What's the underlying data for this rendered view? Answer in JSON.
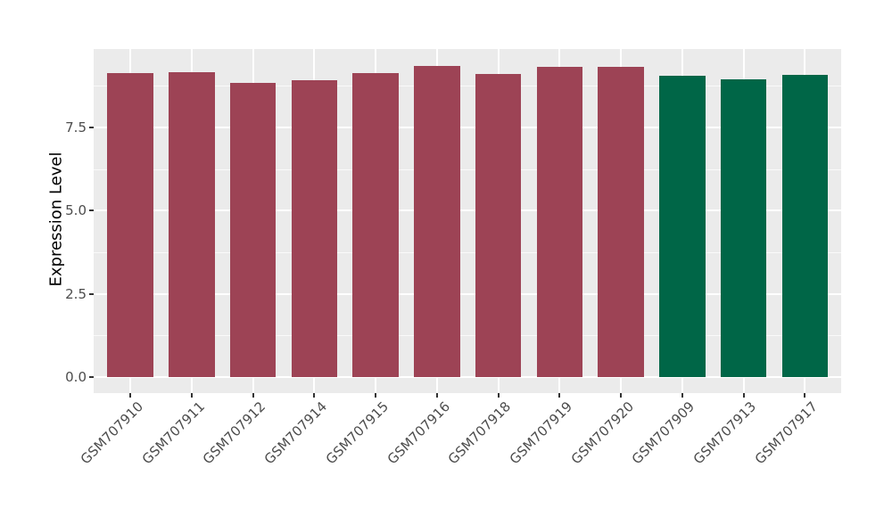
{
  "chart_data": {
    "type": "bar",
    "title": "",
    "xlabel": "",
    "ylabel": "Expression Level",
    "categories": [
      "GSM707910",
      "GSM707911",
      "GSM707912",
      "GSM707914",
      "GSM707915",
      "GSM707916",
      "GSM707918",
      "GSM707919",
      "GSM707920",
      "GSM707909",
      "GSM707913",
      "GSM707917"
    ],
    "values": [
      9.13,
      9.17,
      8.83,
      8.92,
      9.13,
      9.35,
      9.11,
      9.32,
      9.31,
      9.05,
      8.96,
      9.08
    ],
    "bar_colors": [
      "#9D4355",
      "#9D4355",
      "#9D4355",
      "#9D4355",
      "#9D4355",
      "#9D4355",
      "#9D4355",
      "#9D4355",
      "#9D4355",
      "#006647",
      "#006647",
      "#006647"
    ],
    "group_palette": {
      "group1": "#9D4355",
      "group2": "#006647"
    },
    "yticks": [
      0.0,
      2.5,
      5.0,
      7.5
    ],
    "ytick_labels": [
      "0.0",
      "2.5",
      "5.0",
      "7.5"
    ],
    "minor_yticks": [
      1.25,
      3.75,
      6.25,
      8.75
    ],
    "ylim": [
      -0.47,
      9.86
    ],
    "grid": true,
    "legend_position": "none",
    "panel_bg": "#EBEBEB",
    "grid_color": "#FFFFFF",
    "axis_text_color": "#4D4D4D",
    "tick_mark_color": "#333333"
  }
}
